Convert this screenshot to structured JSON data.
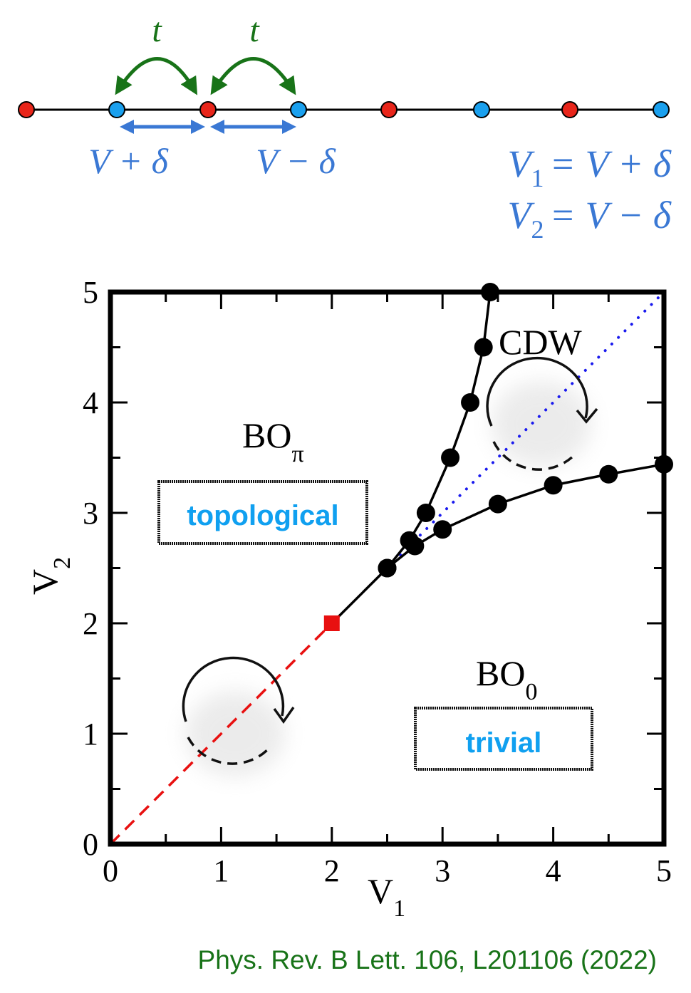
{
  "lattice": {
    "hopping_label": "t",
    "bond_labels": [
      "V + δ",
      "V − δ"
    ],
    "definitions": [
      {
        "lhs": "V",
        "sub": "1",
        "rhs": "= V + δ"
      },
      {
        "lhs": "V",
        "sub": "2",
        "rhs": "= V − δ"
      }
    ],
    "site_colors": [
      "#e8251a",
      "#1aa0ee",
      "#e8251a",
      "#1aa0ee",
      "#e8251a",
      "#1aa0ee",
      "#e8251a",
      "#1aa0ee"
    ],
    "colors": {
      "hopping": "#187318",
      "bond": "#3a78d4"
    }
  },
  "chart_data": {
    "type": "line",
    "title": "",
    "xlabel": "V",
    "xlabel_sub": "1",
    "ylabel": "V",
    "ylabel_sub": "2",
    "xlim": [
      0,
      5
    ],
    "ylim": [
      0,
      5
    ],
    "xticks": [
      "0",
      "1",
      "2",
      "3",
      "4",
      "5"
    ],
    "yticks": [
      "0",
      "1",
      "2",
      "3",
      "4",
      "5"
    ],
    "grid": false,
    "series": [
      {
        "name": "BOπ–CDW boundary",
        "style": "solid-markers",
        "color": "#000000",
        "x": [
          2.5,
          2.7,
          2.85,
          3.07,
          3.25,
          3.37,
          3.43
        ],
        "y": [
          2.5,
          2.75,
          3.0,
          3.5,
          4.0,
          4.5,
          5.0
        ]
      },
      {
        "name": "BO0–CDW boundary",
        "style": "solid-markers",
        "color": "#000000",
        "x": [
          2.5,
          2.75,
          3.0,
          3.5,
          4.0,
          4.5,
          5.0
        ],
        "y": [
          2.5,
          2.7,
          2.85,
          3.08,
          3.25,
          3.35,
          3.44
        ]
      },
      {
        "name": "BOπ–BO0 boundary (first order)",
        "style": "solid",
        "color": "#000000",
        "x": [
          2.0,
          2.5
        ],
        "y": [
          2.0,
          2.5
        ]
      },
      {
        "name": "V1 = V2 line (continuous)",
        "style": "dashed",
        "color": "#e81010",
        "x": [
          0,
          2.0
        ],
        "y": [
          0,
          2.0
        ]
      },
      {
        "name": "V1 = V2 line inside CDW",
        "style": "dotted",
        "color": "#1a1aee",
        "x": [
          2.5,
          5.0
        ],
        "y": [
          2.5,
          5.0
        ]
      }
    ],
    "special_points": [
      {
        "x": 2.0,
        "y": 2.0,
        "marker": "square",
        "color": "#e81010"
      }
    ],
    "annotations": [
      {
        "text": "CDW",
        "x": 3.5,
        "y": 4.55
      },
      {
        "text": "BO",
        "sub": "π",
        "x": 1.5,
        "y": 3.7
      },
      {
        "text": "BO",
        "sub": "0",
        "x": 3.5,
        "y": 1.7
      },
      {
        "text": "topological",
        "x": 1.3,
        "y": 3.0,
        "boxed": true,
        "color": "#10a0f0"
      },
      {
        "text": "trivial",
        "x": 3.55,
        "y": 1.0,
        "boxed": true,
        "color": "#10a0f0"
      }
    ]
  },
  "citation": "Phys. Rev. B Lett. 106, L201106 (2022)"
}
